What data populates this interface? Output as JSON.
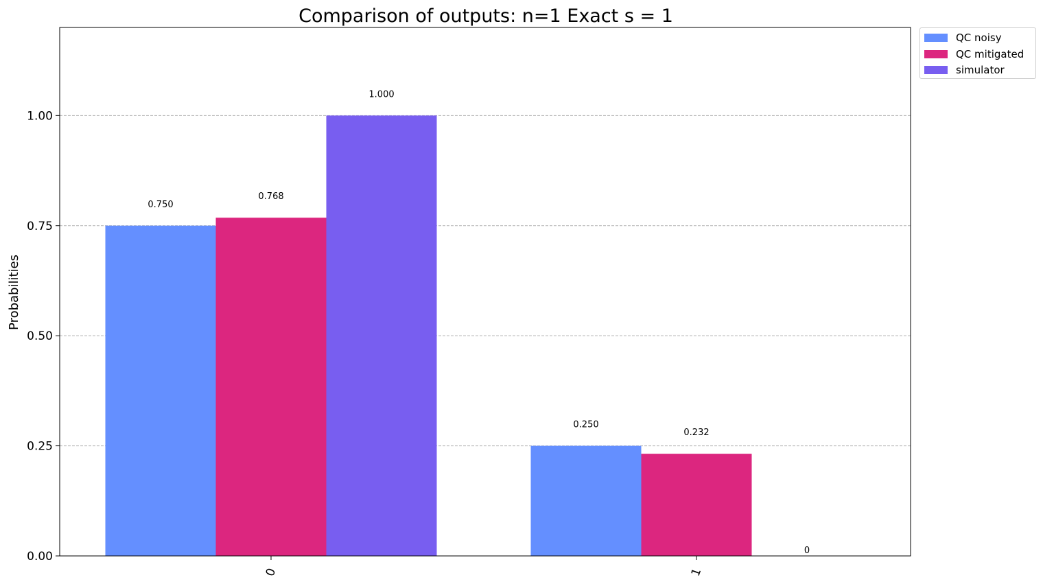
{
  "chart_data": {
    "type": "bar",
    "title": "Comparison of outputs: n=1 Exact s = 1",
    "xlabel": "",
    "ylabel": "Probabilities",
    "ylim": [
      0,
      1.2
    ],
    "yticks": [
      0.0,
      0.25,
      0.5,
      0.75,
      1.0
    ],
    "ytick_labels": [
      "0.00",
      "0.25",
      "0.50",
      "0.75",
      "1.00"
    ],
    "categories": [
      "0",
      "1"
    ],
    "grid": "horizontal dashed",
    "legend_position": "outside top-right",
    "series": [
      {
        "name": "QC noisy",
        "color": "#648fff",
        "values": [
          0.75,
          0.25
        ],
        "labels": [
          "0.750",
          "0.250"
        ]
      },
      {
        "name": "QC mitigated",
        "color": "#dc267f",
        "values": [
          0.768,
          0.232
        ],
        "labels": [
          "0.768",
          "0.232"
        ]
      },
      {
        "name": "simulator",
        "color": "#785ef0",
        "values": [
          1.0,
          0
        ],
        "labels": [
          "1.000",
          "0"
        ]
      }
    ]
  }
}
